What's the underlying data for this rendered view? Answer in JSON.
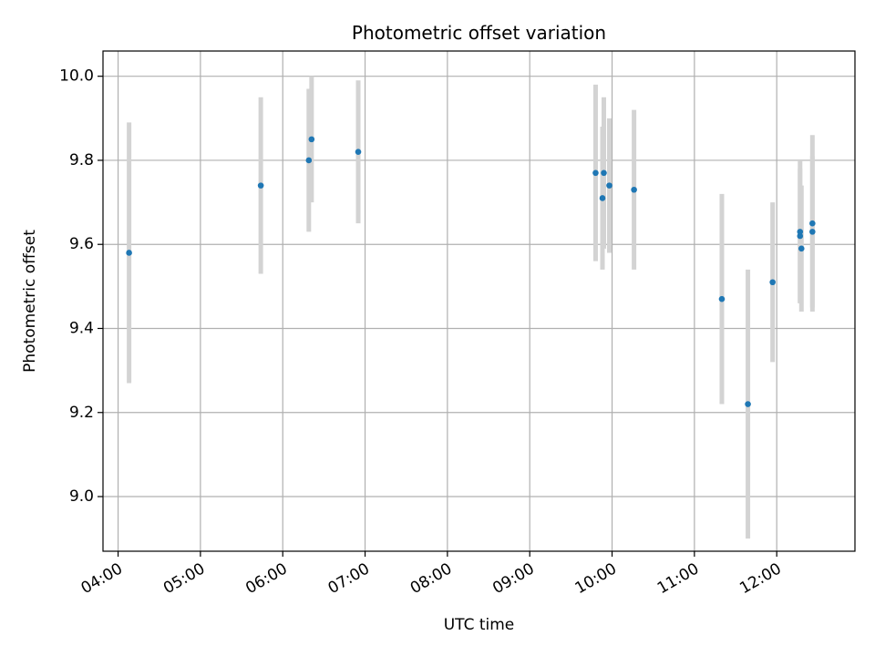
{
  "chart_data": {
    "type": "scatter",
    "title": "Photometric offset variation",
    "xlabel": "UTC time",
    "ylabel": "Photometric offset",
    "x_ticks": [
      "04:00",
      "05:00",
      "06:00",
      "07:00",
      "08:00",
      "09:00",
      "10:00",
      "11:00",
      "12:00"
    ],
    "y_ticks": [
      "9.0",
      "9.2",
      "9.4",
      "9.6",
      "9.8",
      "10.0"
    ],
    "xlim": [
      "03:49",
      "12:57"
    ],
    "ylim": [
      8.87,
      10.06
    ],
    "grid": true,
    "error_bar_color": "#d3d3d3",
    "marker_color": "#1f77b4",
    "points": [
      {
        "x": "04:08",
        "y": 9.58,
        "yerr": 0.31
      },
      {
        "x": "05:44",
        "y": 9.74,
        "yerr": 0.21
      },
      {
        "x": "06:19",
        "y": 9.8,
        "yerr": 0.17
      },
      {
        "x": "06:21",
        "y": 9.85,
        "yerr": 0.15
      },
      {
        "x": "06:55",
        "y": 9.82,
        "yerr": 0.17
      },
      {
        "x": "09:48",
        "y": 9.77,
        "yerr": 0.21
      },
      {
        "x": "09:53",
        "y": 9.71,
        "yerr": 0.17
      },
      {
        "x": "09:54",
        "y": 9.77,
        "yerr": 0.18
      },
      {
        "x": "09:58",
        "y": 9.74,
        "yerr": 0.16
      },
      {
        "x": "10:16",
        "y": 9.73,
        "yerr": 0.19
      },
      {
        "x": "11:20",
        "y": 9.47,
        "yerr": 0.25
      },
      {
        "x": "11:39",
        "y": 9.22,
        "yerr": 0.32
      },
      {
        "x": "11:57",
        "y": 9.51,
        "yerr": 0.19
      },
      {
        "x": "12:17",
        "y": 9.63,
        "yerr": 0.17
      },
      {
        "x": "12:17",
        "y": 9.62,
        "yerr": 0.16
      },
      {
        "x": "12:18",
        "y": 9.59,
        "yerr": 0.15
      },
      {
        "x": "12:26",
        "y": 9.65,
        "yerr": 0.21
      },
      {
        "x": "12:26",
        "y": 9.63,
        "yerr": 0.18
      }
    ]
  }
}
